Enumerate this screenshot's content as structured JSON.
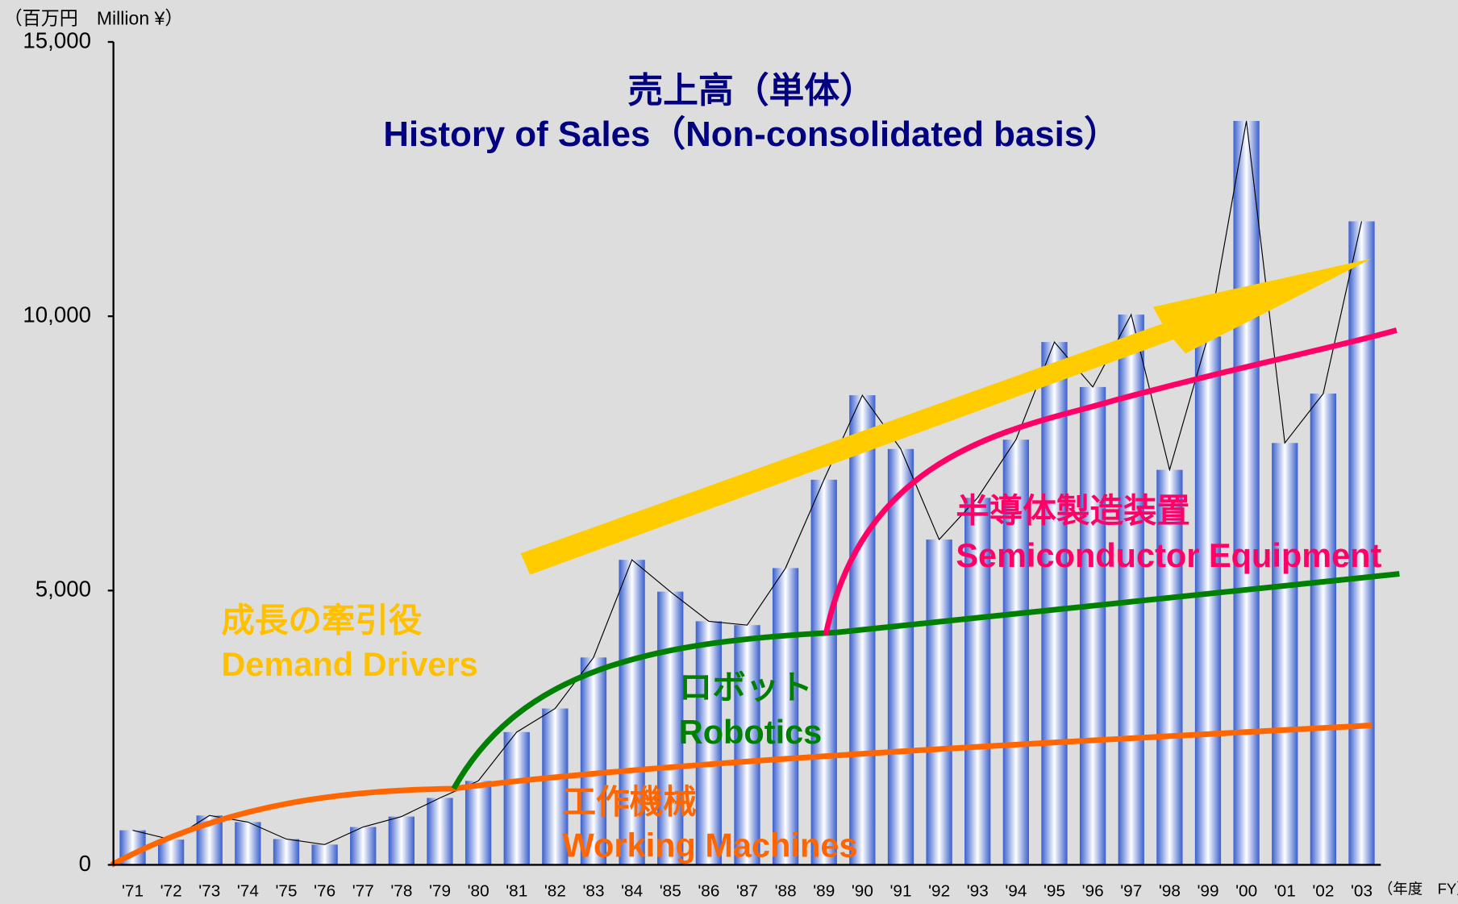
{
  "chart_data": {
    "type": "bar",
    "title": "売上高（単体）",
    "subtitle": "History of Sales（Non-consolidated basis）",
    "y_label": "（百万円　Million ¥）",
    "x_label": "（年度　FY）",
    "categories": [
      "'71",
      "'72",
      "'73",
      "'74",
      "'75",
      "'76",
      "'77",
      "'78",
      "'79",
      "'80",
      "'81",
      "'82",
      "'83",
      "'84",
      "'85",
      "'86",
      "'87",
      "'88",
      "'89",
      "'90",
      "'91",
      "'92",
      "'93",
      "'94",
      "'95",
      "'96",
      "'97",
      "'98",
      "'99",
      "'00",
      "'01",
      "'02",
      "'03"
    ],
    "values": [
      630,
      460,
      900,
      780,
      470,
      370,
      690,
      880,
      1220,
      1530,
      2420,
      2850,
      3780,
      5560,
      4980,
      4440,
      4370,
      5410,
      7020,
      8560,
      7580,
      5930,
      6690,
      7750,
      9530,
      8710,
      10030,
      7200,
      9630,
      13560,
      7690,
      8590,
      11730
    ],
    "color": "#3a5fcd",
    "ylim": [
      0,
      15000
    ],
    "yticks": [
      0,
      {
        "value": 5000,
        "label": "5,000"
      },
      {
        "value": 10000,
        "label": "10,000"
      },
      {
        "value": 15000,
        "label": "15,000"
      }
    ],
    "annotations": [
      "成長の牽引役",
      "Demand Drivers",
      "ロボット",
      "Robotics",
      "工作機械",
      "Working Machines",
      "半導体製造装置",
      "Semiconductor Equipment"
    ]
  }
}
